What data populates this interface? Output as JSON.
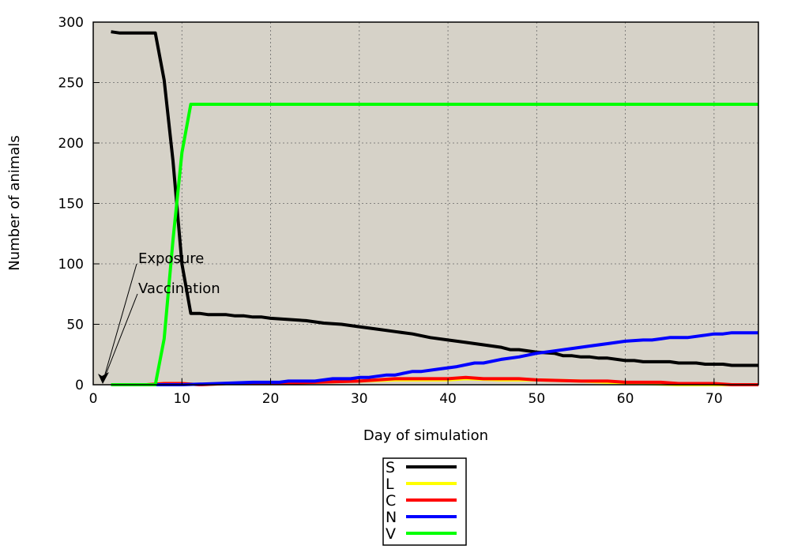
{
  "chart_data": {
    "type": "line",
    "title": "",
    "xlabel": "Day of simulation",
    "ylabel": "Number of animals",
    "xlim": [
      0,
      75
    ],
    "ylim": [
      0,
      300
    ],
    "xticks": [
      0,
      10,
      20,
      30,
      40,
      50,
      60,
      70
    ],
    "yticks": [
      0,
      50,
      100,
      150,
      200,
      250,
      300
    ],
    "grid": true,
    "background_color": "#d6d2c8",
    "legend_position": "bottom-center",
    "annotations": [
      {
        "text": "Exposure",
        "x": 1,
        "y": 0
      },
      {
        "text": "Vaccination",
        "x": 1,
        "y": 0
      }
    ],
    "series": [
      {
        "name": "S",
        "color": "#000000",
        "points": [
          [
            2,
            292
          ],
          [
            3,
            291
          ],
          [
            4,
            291
          ],
          [
            5,
            291
          ],
          [
            6,
            291
          ],
          [
            7,
            291
          ],
          [
            8,
            252
          ],
          [
            9,
            185
          ],
          [
            10,
            100
          ],
          [
            11,
            59
          ],
          [
            12,
            59
          ],
          [
            13,
            58
          ],
          [
            14,
            58
          ],
          [
            15,
            58
          ],
          [
            16,
            57
          ],
          [
            17,
            57
          ],
          [
            18,
            56
          ],
          [
            19,
            56
          ],
          [
            20,
            55
          ],
          [
            22,
            54
          ],
          [
            24,
            53
          ],
          [
            26,
            51
          ],
          [
            28,
            50
          ],
          [
            30,
            48
          ],
          [
            32,
            46
          ],
          [
            34,
            44
          ],
          [
            36,
            42
          ],
          [
            38,
            39
          ],
          [
            40,
            37
          ],
          [
            42,
            35
          ],
          [
            44,
            33
          ],
          [
            46,
            31
          ],
          [
            47,
            29
          ],
          [
            48,
            29
          ],
          [
            50,
            27
          ],
          [
            52,
            26
          ],
          [
            53,
            24
          ],
          [
            54,
            24
          ],
          [
            55,
            23
          ],
          [
            56,
            23
          ],
          [
            57,
            22
          ],
          [
            58,
            22
          ],
          [
            60,
            20
          ],
          [
            61,
            20
          ],
          [
            62,
            19
          ],
          [
            63,
            19
          ],
          [
            64,
            19
          ],
          [
            65,
            19
          ],
          [
            66,
            18
          ],
          [
            68,
            18
          ],
          [
            69,
            17
          ],
          [
            71,
            17
          ],
          [
            72,
            16
          ],
          [
            75,
            16
          ]
        ]
      },
      {
        "name": "L",
        "color": "#ffff00",
        "points": [
          [
            2,
            0
          ],
          [
            6,
            0
          ],
          [
            8,
            1
          ],
          [
            10,
            1
          ],
          [
            12,
            0
          ],
          [
            15,
            1
          ],
          [
            20,
            1
          ],
          [
            25,
            2
          ],
          [
            30,
            3
          ],
          [
            34,
            4
          ],
          [
            38,
            4
          ],
          [
            40,
            4
          ],
          [
            42,
            5
          ],
          [
            46,
            4
          ],
          [
            50,
            4
          ],
          [
            55,
            3
          ],
          [
            58,
            2
          ],
          [
            62,
            1
          ],
          [
            66,
            0
          ],
          [
            70,
            0
          ],
          [
            75,
            0
          ]
        ]
      },
      {
        "name": "C",
        "color": "#ff0000",
        "points": [
          [
            2,
            0
          ],
          [
            6,
            0
          ],
          [
            8,
            1
          ],
          [
            10,
            1
          ],
          [
            12,
            0
          ],
          [
            15,
            1
          ],
          [
            20,
            1
          ],
          [
            25,
            2
          ],
          [
            30,
            3
          ],
          [
            34,
            5
          ],
          [
            38,
            5
          ],
          [
            40,
            5
          ],
          [
            42,
            6
          ],
          [
            44,
            5
          ],
          [
            48,
            5
          ],
          [
            50,
            4
          ],
          [
            55,
            3
          ],
          [
            58,
            3
          ],
          [
            60,
            2
          ],
          [
            64,
            2
          ],
          [
            66,
            1
          ],
          [
            70,
            1
          ],
          [
            72,
            0
          ],
          [
            75,
            0
          ]
        ]
      },
      {
        "name": "N",
        "color": "#0000ff",
        "points": [
          [
            2,
            0
          ],
          [
            10,
            0
          ],
          [
            14,
            1
          ],
          [
            18,
            2
          ],
          [
            21,
            2
          ],
          [
            22,
            3
          ],
          [
            25,
            3
          ],
          [
            27,
            5
          ],
          [
            29,
            5
          ],
          [
            30,
            6
          ],
          [
            31,
            6
          ],
          [
            33,
            8
          ],
          [
            34,
            8
          ],
          [
            36,
            11
          ],
          [
            37,
            11
          ],
          [
            39,
            13
          ],
          [
            41,
            15
          ],
          [
            43,
            18
          ],
          [
            44,
            18
          ],
          [
            46,
            21
          ],
          [
            48,
            23
          ],
          [
            50,
            26
          ],
          [
            52,
            28
          ],
          [
            54,
            30
          ],
          [
            56,
            32
          ],
          [
            58,
            34
          ],
          [
            60,
            36
          ],
          [
            62,
            37
          ],
          [
            63,
            37
          ],
          [
            64,
            38
          ],
          [
            65,
            39
          ],
          [
            67,
            39
          ],
          [
            69,
            41
          ],
          [
            70,
            42
          ],
          [
            71,
            42
          ],
          [
            72,
            43
          ],
          [
            73,
            43
          ],
          [
            75,
            43
          ]
        ]
      },
      {
        "name": "V",
        "color": "#00ff00",
        "points": [
          [
            2,
            0
          ],
          [
            7,
            0
          ],
          [
            8,
            38
          ],
          [
            9,
            120
          ],
          [
            10,
            192
          ],
          [
            11,
            232
          ],
          [
            12,
            232
          ],
          [
            75,
            232
          ]
        ]
      }
    ]
  }
}
